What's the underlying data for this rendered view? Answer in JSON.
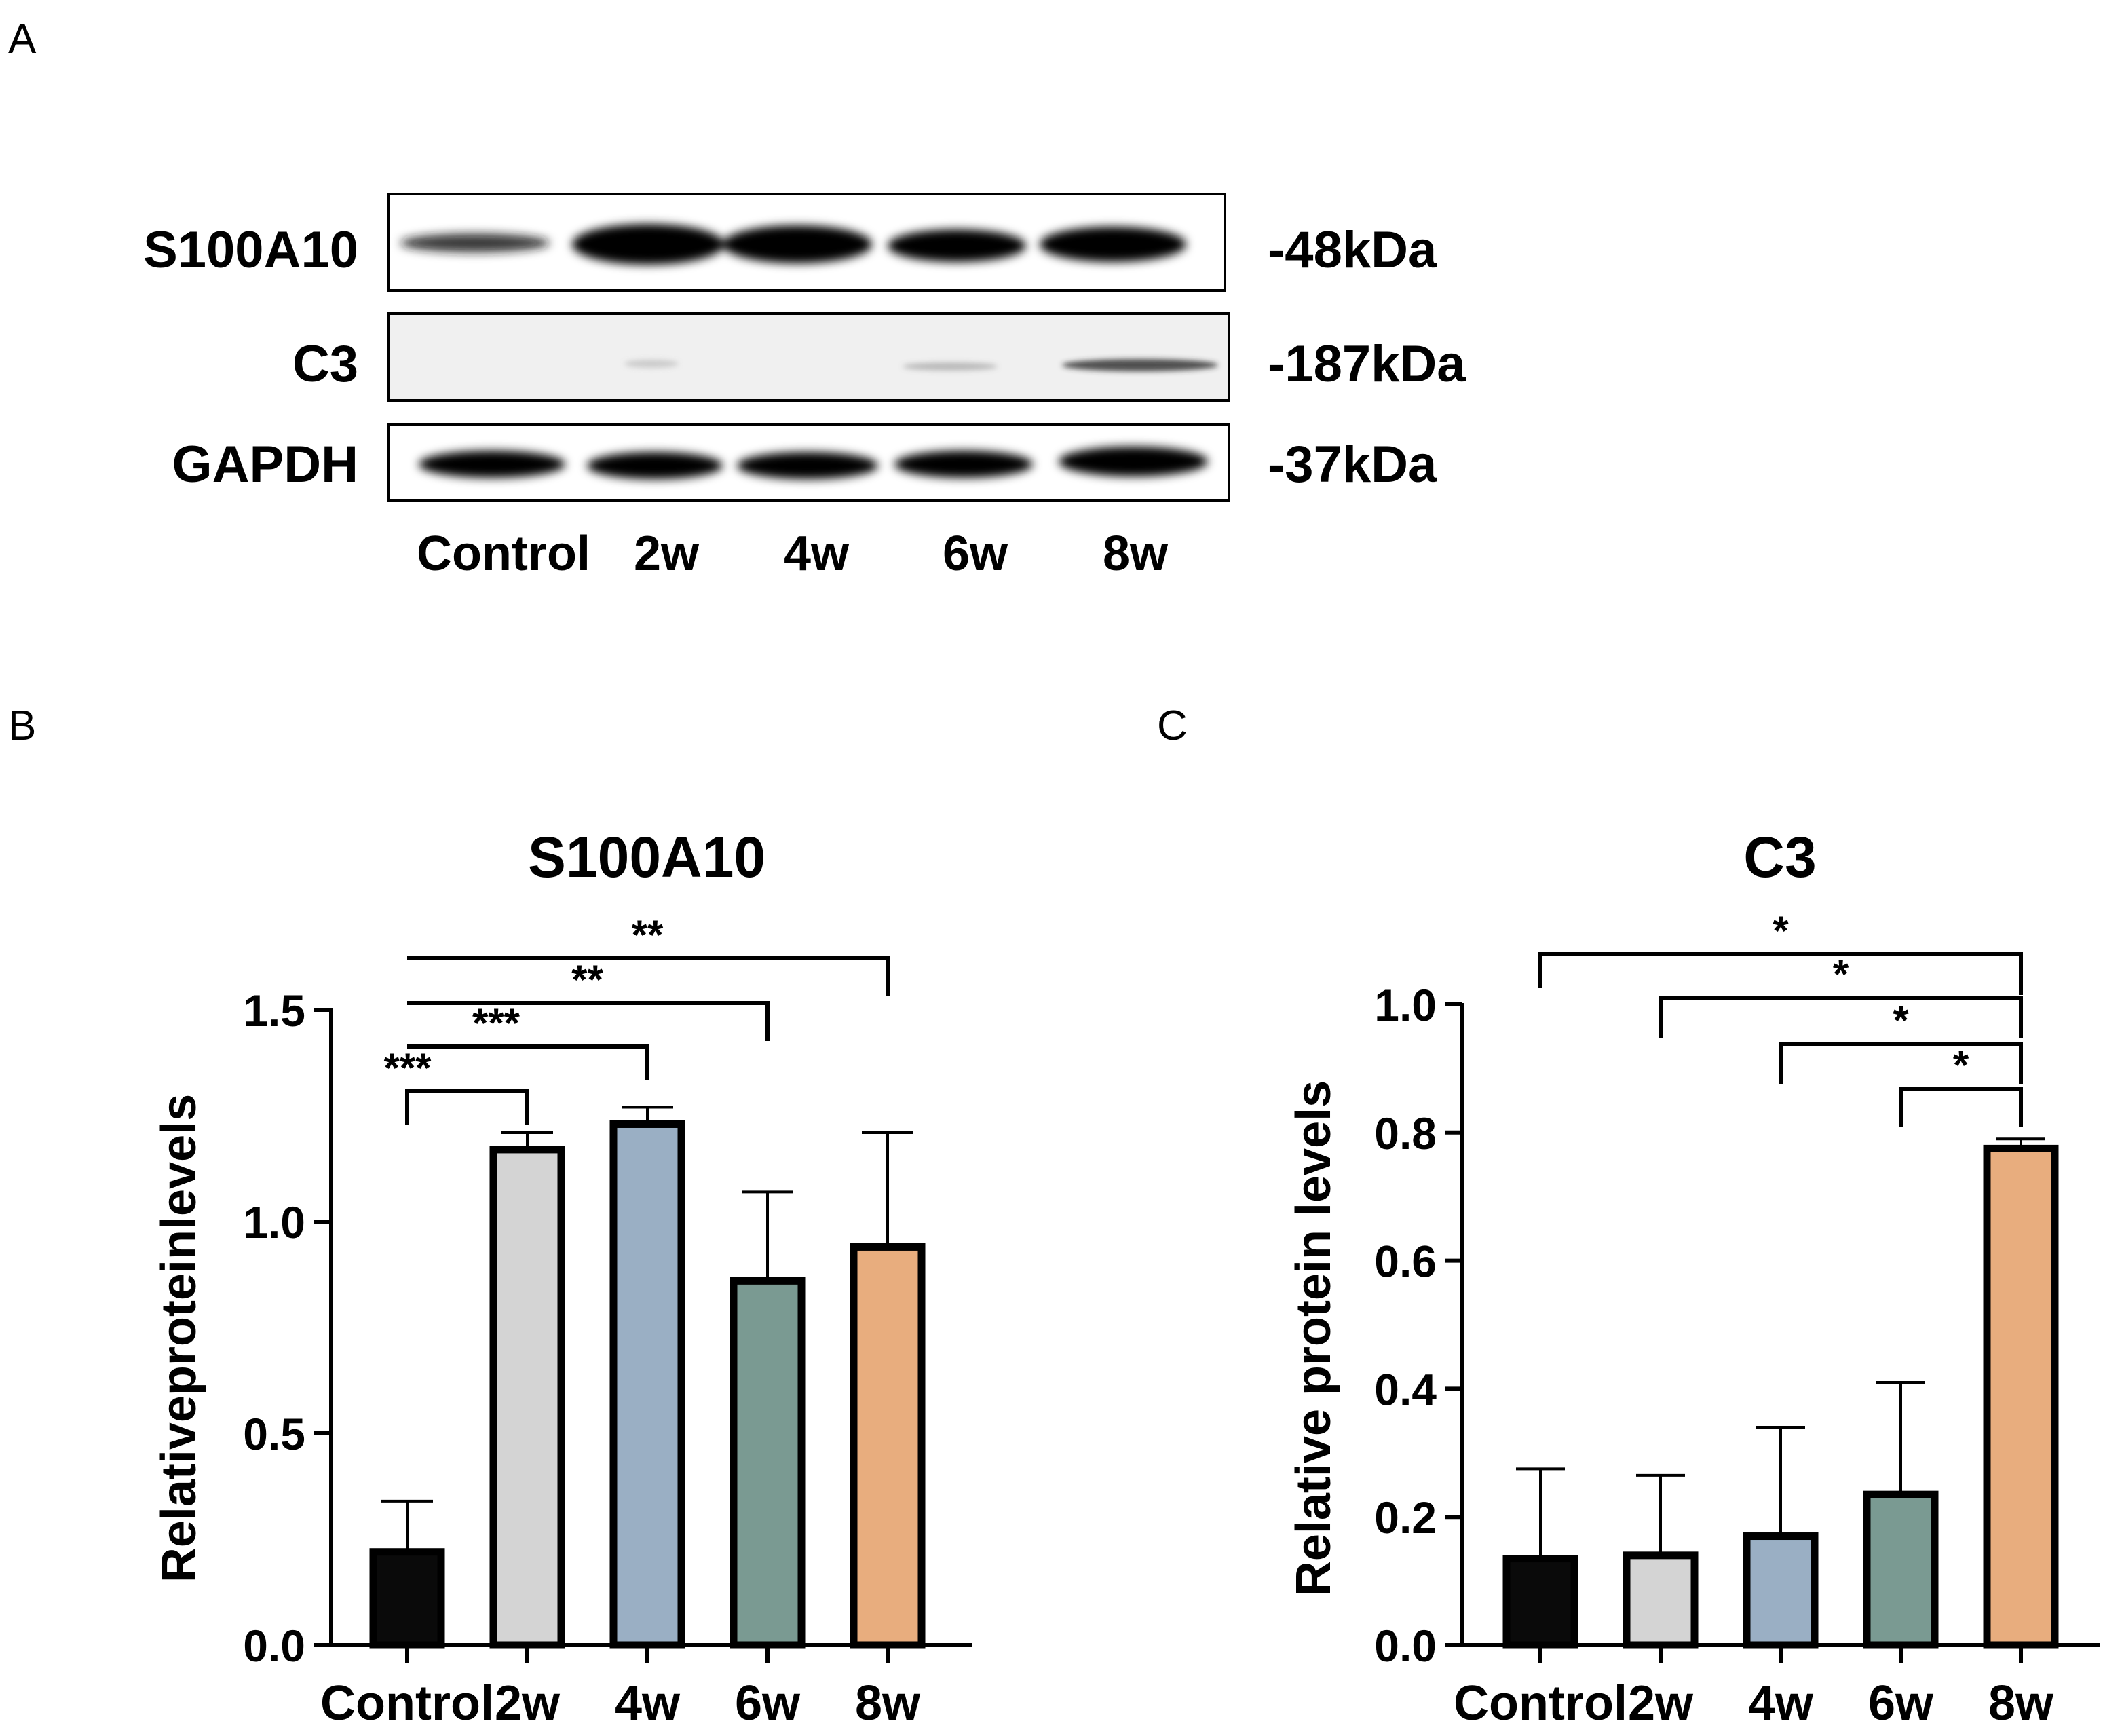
{
  "panel_letters": {
    "a": "A",
    "b": "B",
    "c": "C"
  },
  "blot": {
    "proteins": [
      {
        "name": "S100A10",
        "size": "-48kDa"
      },
      {
        "name": "C3",
        "size": "-187kDa"
      },
      {
        "name": "GAPDH",
        "size": "-37kDa"
      }
    ],
    "lanes": [
      "Control",
      "2w",
      "4w",
      "6w",
      "8w"
    ]
  },
  "colors": {
    "Control": "#0a0a0a",
    "2w": "#d4d4d4",
    "4w": "#9aafc4",
    "6w": "#7a9a92",
    "8w": "#e8ad7e"
  },
  "chart_data": [
    {
      "type": "bar",
      "title": "S100A10",
      "xlabel": "",
      "ylabel": "Relativeproteinlevels",
      "categories": [
        "Control",
        "2w",
        "4w",
        "6w",
        "8w"
      ],
      "values": [
        0.22,
        1.17,
        1.23,
        0.86,
        0.94
      ],
      "errors": [
        0.12,
        0.04,
        0.04,
        0.21,
        0.27
      ],
      "ylim": [
        0,
        1.5
      ],
      "yticks": [
        "0.0",
        "0.5",
        "1.0",
        "1.5"
      ],
      "significance": [
        {
          "from": "Control",
          "to": "2w",
          "label": "***"
        },
        {
          "from": "Control",
          "to": "4w",
          "label": "***"
        },
        {
          "from": "Control",
          "to": "6w",
          "label": "**"
        },
        {
          "from": "Control",
          "to": "8w",
          "label": "**"
        }
      ]
    },
    {
      "type": "bar",
      "title": "C3",
      "xlabel": "",
      "ylabel": "Relative protein levels",
      "categories": [
        "Control",
        "2w",
        "4w",
        "6w",
        "8w"
      ],
      "values": [
        0.135,
        0.14,
        0.17,
        0.235,
        0.775
      ],
      "errors": [
        0.14,
        0.125,
        0.17,
        0.175,
        0.015
      ],
      "ylim": [
        0,
        1.0
      ],
      "yticks": [
        "0.0",
        "0.2",
        "0.4",
        "0.6",
        "0.8",
        "1.0"
      ],
      "significance": [
        {
          "from": "Control",
          "to": "8w",
          "label": "*"
        },
        {
          "from": "2w",
          "to": "8w",
          "label": "*"
        },
        {
          "from": "4w",
          "to": "8w",
          "label": "*"
        },
        {
          "from": "6w",
          "to": "8w",
          "label": "*"
        }
      ]
    }
  ]
}
